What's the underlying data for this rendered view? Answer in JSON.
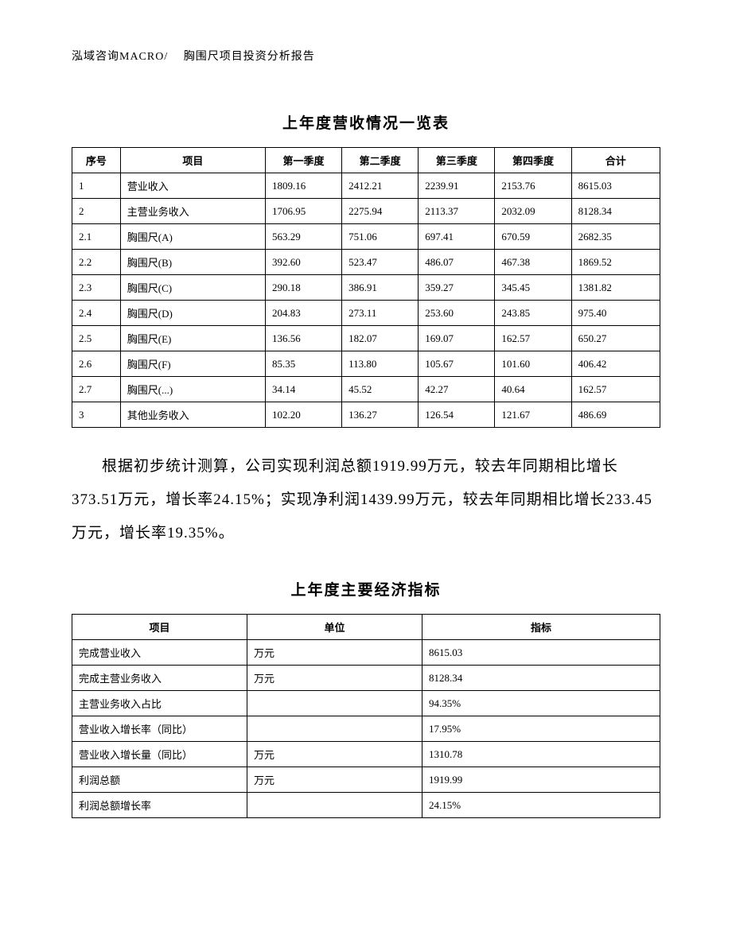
{
  "header": "泓域咨询MACRO/　 胸围尺项目投资分析报告",
  "table1": {
    "title": "上年度营收情况一览表",
    "columns": [
      "序号",
      "项目",
      "第一季度",
      "第二季度",
      "第三季度",
      "第四季度",
      "合计"
    ],
    "rows": [
      [
        "1",
        "营业收入",
        "1809.16",
        "2412.21",
        "2239.91",
        "2153.76",
        "8615.03"
      ],
      [
        "2",
        "主营业务收入",
        "1706.95",
        "2275.94",
        "2113.37",
        "2032.09",
        "8128.34"
      ],
      [
        "2.1",
        "胸围尺(A)",
        "563.29",
        "751.06",
        "697.41",
        "670.59",
        "2682.35"
      ],
      [
        "2.2",
        "胸围尺(B)",
        "392.60",
        "523.47",
        "486.07",
        "467.38",
        "1869.52"
      ],
      [
        "2.3",
        "胸围尺(C)",
        "290.18",
        "386.91",
        "359.27",
        "345.45",
        "1381.82"
      ],
      [
        "2.4",
        "胸围尺(D)",
        "204.83",
        "273.11",
        "253.60",
        "243.85",
        "975.40"
      ],
      [
        "2.5",
        "胸围尺(E)",
        "136.56",
        "182.07",
        "169.07",
        "162.57",
        "650.27"
      ],
      [
        "2.6",
        "胸围尺(F)",
        "85.35",
        "113.80",
        "105.67",
        "101.60",
        "406.42"
      ],
      [
        "2.7",
        "胸围尺(...)",
        "34.14",
        "45.52",
        "42.27",
        "40.64",
        "162.57"
      ],
      [
        "3",
        "其他业务收入",
        "102.20",
        "136.27",
        "126.54",
        "121.67",
        "486.69"
      ]
    ]
  },
  "paragraph": "根据初步统计测算，公司实现利润总额1919.99万元，较去年同期相比增长373.51万元，增长率24.15%；实现净利润1439.99万元，较去年同期相比增长233.45万元，增长率19.35%。",
  "table2": {
    "title": "上年度主要经济指标",
    "columns": [
      "项目",
      "单位",
      "指标"
    ],
    "rows": [
      [
        "完成营业收入",
        "万元",
        "8615.03"
      ],
      [
        "完成主营业务收入",
        "万元",
        "8128.34"
      ],
      [
        "主营业务收入占比",
        "",
        "94.35%"
      ],
      [
        "营业收入增长率（同比）",
        "",
        "17.95%"
      ],
      [
        "营业收入增长量（同比）",
        "万元",
        "1310.78"
      ],
      [
        "利润总额",
        "万元",
        "1919.99"
      ],
      [
        "利润总额增长率",
        "",
        "24.15%"
      ]
    ]
  }
}
